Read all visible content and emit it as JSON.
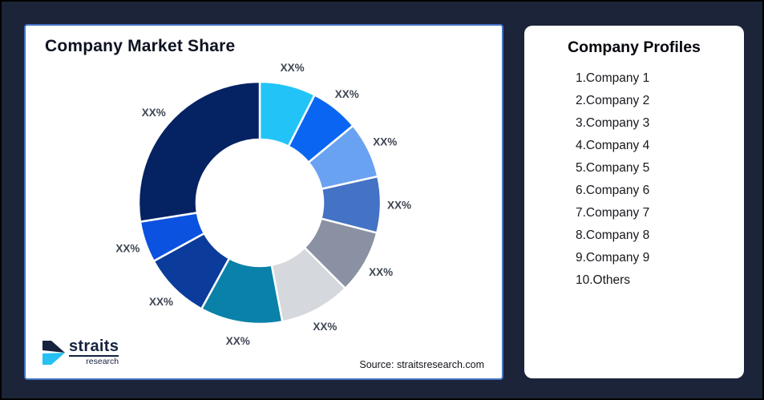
{
  "canvas": {
    "background_color": "#1B2438",
    "outer_border_color": "#000000"
  },
  "chart_panel": {
    "title": "Company Market Share",
    "source_note": "Source: straitsresearch.com",
    "border_color": "#4472C4"
  },
  "logo": {
    "line1": "straits",
    "line2": "research",
    "navy_color": "#16233F",
    "cyan_color": "#24C1F2"
  },
  "profiles_panel": {
    "title": "Company Profiles",
    "items": [
      "1.Company 1",
      "2.Company 2",
      "3.Company 3",
      "4.Company 4",
      "5.Company 5",
      "6.Company 6",
      "7.Company 7",
      "8.Company 8",
      "9.Company 9",
      "10.Others"
    ]
  },
  "chart_data": {
    "type": "pie",
    "subtype": "donut",
    "title": "Company Market Share",
    "start_angle_deg": 0,
    "direction": "clockwise",
    "inner_radius_ratio": 0.52,
    "gap_color": "#FFFFFF",
    "label_text_color": "#3F4654",
    "segments": [
      {
        "data_label": "XX%",
        "value_pct_est": 7.5,
        "color": "#22C4F7"
      },
      {
        "data_label": "XX%",
        "value_pct_est": 6.5,
        "color": "#0A66F2"
      },
      {
        "data_label": "XX%",
        "value_pct_est": 7.5,
        "color": "#6AA2F2"
      },
      {
        "data_label": "XX%",
        "value_pct_est": 7.5,
        "color": "#4472C4"
      },
      {
        "data_label": "XX%",
        "value_pct_est": 8.5,
        "color": "#8A91A2"
      },
      {
        "data_label": "XX%",
        "value_pct_est": 9.5,
        "color": "#D5D8DD"
      },
      {
        "data_label": "XX%",
        "value_pct_est": 11.0,
        "color": "#0A81A8"
      },
      {
        "data_label": "XX%",
        "value_pct_est": 9.0,
        "color": "#0B3C9B"
      },
      {
        "data_label": "XX%",
        "value_pct_est": 5.5,
        "color": "#0C52E0"
      },
      {
        "data_label": "XX%",
        "value_pct_est": 27.5,
        "color": "#052362"
      }
    ]
  }
}
